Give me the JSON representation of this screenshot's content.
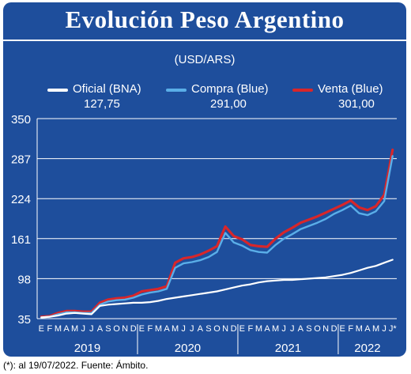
{
  "header": {
    "title": "Evolución Peso Argentino",
    "unit": "(USD/ARS)"
  },
  "legend": [
    {
      "label": "Oficial (BNA)",
      "value": "127,75",
      "color": "#ffffff"
    },
    {
      "label": "Compra (Blue)",
      "value": "291,00",
      "color": "#5aaee8"
    },
    {
      "label": "Venta (Blue)",
      "value": "301,00",
      "color": "#d8262a"
    }
  ],
  "footnote": "(*): al 19/07/2022. Fuente: Ámbito.",
  "colors": {
    "background": "#1e4e9c",
    "grid": "#ffffff",
    "oficial": "#ffffff",
    "compra": "#5aaee8",
    "venta": "#d8262a"
  },
  "chart_data": {
    "type": "line",
    "title": "Evolución Peso Argentino",
    "ylabel": "(USD/ARS)",
    "ylim": [
      35,
      350
    ],
    "yticks": [
      "350",
      "287",
      "224",
      "161",
      "98",
      "35"
    ],
    "ytick_values": [
      350,
      287,
      224,
      161,
      98,
      35
    ],
    "xlim": [
      0,
      43
    ],
    "month_ticks": [
      "E",
      "F",
      "M",
      "A",
      "M",
      "J",
      "J",
      "A",
      "S",
      "O",
      "N",
      "D",
      "E",
      "F",
      "M",
      "A",
      "M",
      "J",
      "J",
      "A",
      "S",
      "O",
      "N",
      "D",
      "E",
      "F",
      "M",
      "A",
      "M",
      "J",
      "J",
      "A",
      "S",
      "O",
      "N",
      "D",
      "E",
      "F",
      "M",
      "A",
      "M",
      "J",
      "J*"
    ],
    "year_labels": [
      {
        "label": "2019",
        "start": 0,
        "end": 12
      },
      {
        "label": "2020",
        "start": 12,
        "end": 24
      },
      {
        "label": "2021",
        "start": 24,
        "end": 36
      },
      {
        "label": "2022",
        "start": 36,
        "end": 43
      }
    ],
    "grid": true,
    "legend_position": "top",
    "series": [
      {
        "name": "Oficial (BNA)",
        "last": "127,75",
        "points": [
          [
            0,
            37
          ],
          [
            1,
            38
          ],
          [
            2,
            40
          ],
          [
            3,
            43
          ],
          [
            4,
            44
          ],
          [
            5,
            43
          ],
          [
            6,
            42
          ],
          [
            7,
            55
          ],
          [
            8,
            57
          ],
          [
            9,
            58
          ],
          [
            10,
            59
          ],
          [
            11,
            60
          ],
          [
            12,
            60
          ],
          [
            13,
            61
          ],
          [
            14,
            63
          ],
          [
            15,
            66
          ],
          [
            16,
            68
          ],
          [
            17,
            70
          ],
          [
            18,
            72
          ],
          [
            19,
            74
          ],
          [
            20,
            76
          ],
          [
            21,
            78
          ],
          [
            22,
            81
          ],
          [
            23,
            84
          ],
          [
            24,
            87
          ],
          [
            25,
            89
          ],
          [
            26,
            92
          ],
          [
            27,
            94
          ],
          [
            28,
            95
          ],
          [
            29,
            96
          ],
          [
            30,
            96
          ],
          [
            31,
            97
          ],
          [
            32,
            98
          ],
          [
            33,
            99
          ],
          [
            34,
            100
          ],
          [
            35,
            102
          ],
          [
            36,
            104
          ],
          [
            37,
            107
          ],
          [
            38,
            111
          ],
          [
            39,
            115
          ],
          [
            40,
            118
          ],
          [
            41,
            123
          ],
          [
            42,
            127.75
          ]
        ]
      },
      {
        "name": "Compra (Blue)",
        "last": "291,00",
        "points": [
          [
            0,
            37
          ],
          [
            1,
            38
          ],
          [
            2,
            42
          ],
          [
            3,
            45
          ],
          [
            4,
            45
          ],
          [
            5,
            44
          ],
          [
            6,
            44
          ],
          [
            7,
            57
          ],
          [
            8,
            62
          ],
          [
            9,
            64
          ],
          [
            10,
            65
          ],
          [
            11,
            68
          ],
          [
            12,
            73
          ],
          [
            13,
            76
          ],
          [
            14,
            78
          ],
          [
            15,
            82
          ],
          [
            16,
            115
          ],
          [
            17,
            122
          ],
          [
            18,
            124
          ],
          [
            19,
            127
          ],
          [
            20,
            132
          ],
          [
            21,
            140
          ],
          [
            22,
            170
          ],
          [
            23,
            155
          ],
          [
            24,
            150
          ],
          [
            25,
            143
          ],
          [
            26,
            140
          ],
          [
            27,
            139
          ],
          [
            28,
            151
          ],
          [
            29,
            161
          ],
          [
            30,
            168
          ],
          [
            31,
            176
          ],
          [
            32,
            181
          ],
          [
            33,
            186
          ],
          [
            34,
            192
          ],
          [
            35,
            200
          ],
          [
            36,
            206
          ],
          [
            37,
            213
          ],
          [
            38,
            201
          ],
          [
            39,
            198
          ],
          [
            40,
            204
          ],
          [
            41,
            220
          ],
          [
            42,
            291
          ]
        ]
      },
      {
        "name": "Venta (Blue)",
        "last": "301,00",
        "points": [
          [
            0,
            38
          ],
          [
            1,
            39
          ],
          [
            2,
            44
          ],
          [
            3,
            47
          ],
          [
            4,
            47
          ],
          [
            5,
            46
          ],
          [
            6,
            46
          ],
          [
            7,
            60
          ],
          [
            8,
            65
          ],
          [
            9,
            67
          ],
          [
            10,
            68
          ],
          [
            11,
            71
          ],
          [
            12,
            78
          ],
          [
            13,
            80
          ],
          [
            14,
            82
          ],
          [
            15,
            86
          ],
          [
            16,
            123
          ],
          [
            17,
            130
          ],
          [
            18,
            132
          ],
          [
            19,
            136
          ],
          [
            20,
            142
          ],
          [
            21,
            149
          ],
          [
            22,
            180
          ],
          [
            23,
            165
          ],
          [
            24,
            160
          ],
          [
            25,
            151
          ],
          [
            26,
            149
          ],
          [
            27,
            148
          ],
          [
            28,
            161
          ],
          [
            29,
            171
          ],
          [
            30,
            178
          ],
          [
            31,
            186
          ],
          [
            32,
            191
          ],
          [
            33,
            196
          ],
          [
            34,
            202
          ],
          [
            35,
            208
          ],
          [
            36,
            214
          ],
          [
            37,
            221
          ],
          [
            38,
            210
          ],
          [
            39,
            206
          ],
          [
            40,
            212
          ],
          [
            41,
            230
          ],
          [
            42,
            301
          ]
        ]
      }
    ]
  }
}
